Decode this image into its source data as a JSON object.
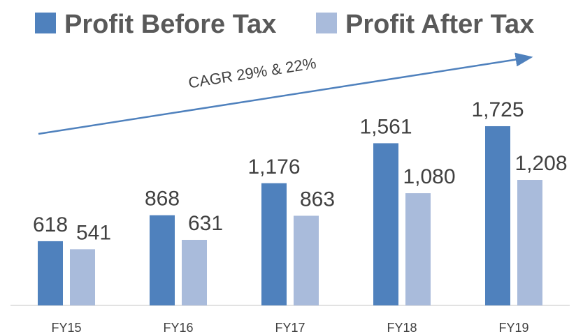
{
  "chart_data": {
    "type": "bar",
    "categories": [
      "FY15",
      "FY16",
      "FY17",
      "FY18",
      "FY19"
    ],
    "series": [
      {
        "name": "Profit Before Tax",
        "color": "#4f81bd",
        "values": [
          618,
          868,
          1176,
          1561,
          1725
        ],
        "value_labels": [
          "618",
          "868",
          "1,176",
          "1,561",
          "1,725"
        ]
      },
      {
        "name": "Profit After Tax",
        "color": "#a9bbdb",
        "values": [
          541,
          631,
          863,
          1080,
          1208
        ],
        "value_labels": [
          "541",
          "631",
          "863",
          "1,080",
          "1,208"
        ]
      }
    ],
    "annotations": [
      "CAGR 29% & 22%"
    ],
    "ylim": [
      0,
      2000
    ],
    "legend": "top"
  }
}
